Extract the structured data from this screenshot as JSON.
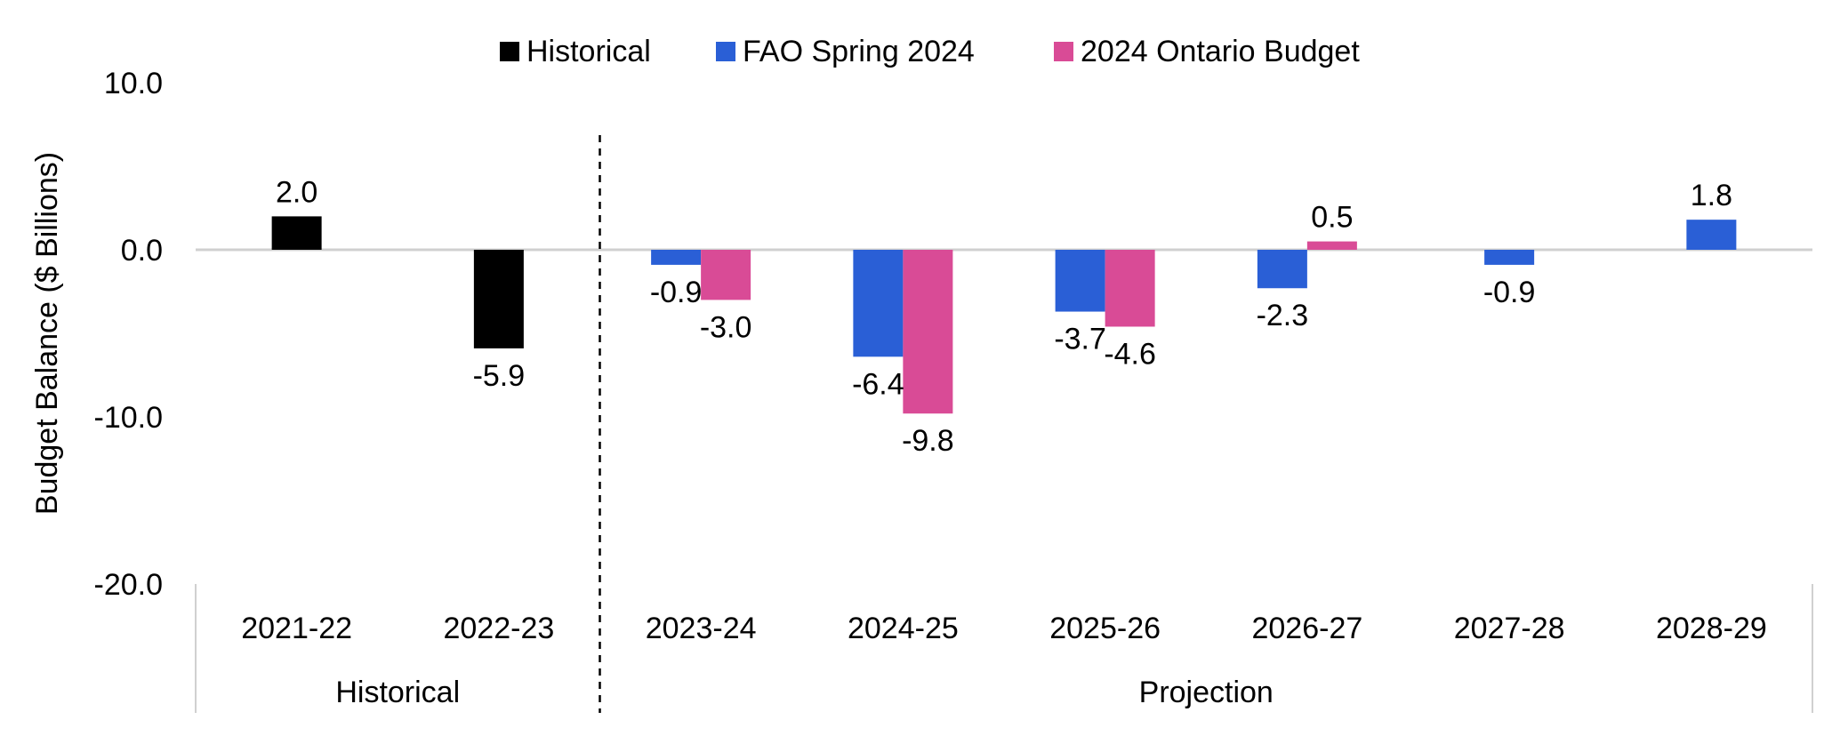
{
  "chart_data": {
    "type": "bar",
    "title": "",
    "xlabel": "",
    "ylabel": "Budget Balance ($ Billions)",
    "ylim": [
      -20,
      10
    ],
    "yticks": [
      "10.0",
      "0.0",
      "-10.0",
      "-20.0"
    ],
    "ytick_values": [
      10,
      0,
      -10,
      -20
    ],
    "categories": [
      "2021-22",
      "2022-23",
      "2023-24",
      "2024-25",
      "2025-26",
      "2026-27",
      "2027-28",
      "2028-29"
    ],
    "category_groups": [
      {
        "label": "Historical",
        "categories": [
          "2021-22",
          "2022-23"
        ]
      },
      {
        "label": "Projection",
        "categories": [
          "2023-24",
          "2024-25",
          "2025-26",
          "2026-27",
          "2027-28",
          "2028-29"
        ]
      }
    ],
    "series": [
      {
        "name": "Historical",
        "color": "#000000",
        "values": [
          2.0,
          -5.9,
          null,
          null,
          null,
          null,
          null,
          null
        ],
        "labels": [
          "2.0",
          "-5.9",
          "",
          "",
          "",
          "",
          "",
          ""
        ]
      },
      {
        "name": "FAO Spring 2024",
        "color": "#2a5fd6",
        "values": [
          null,
          null,
          -0.9,
          -6.4,
          -3.7,
          -2.3,
          -0.9,
          1.8
        ],
        "labels": [
          "",
          "",
          "-0.9",
          "-6.4",
          "-3.7",
          "-2.3",
          "-0.9",
          "1.8"
        ]
      },
      {
        "name": "2024 Ontario Budget",
        "color": "#d94b96",
        "values": [
          null,
          null,
          -3.0,
          -9.8,
          -4.6,
          0.5,
          null,
          null
        ],
        "labels": [
          "",
          "",
          "-3.0",
          "-9.8",
          "-4.6",
          "0.5",
          "",
          ""
        ]
      }
    ],
    "legend_position": "top-center",
    "grid": false,
    "divider": "dashed vertical line between 2022-23 and 2023-24"
  }
}
